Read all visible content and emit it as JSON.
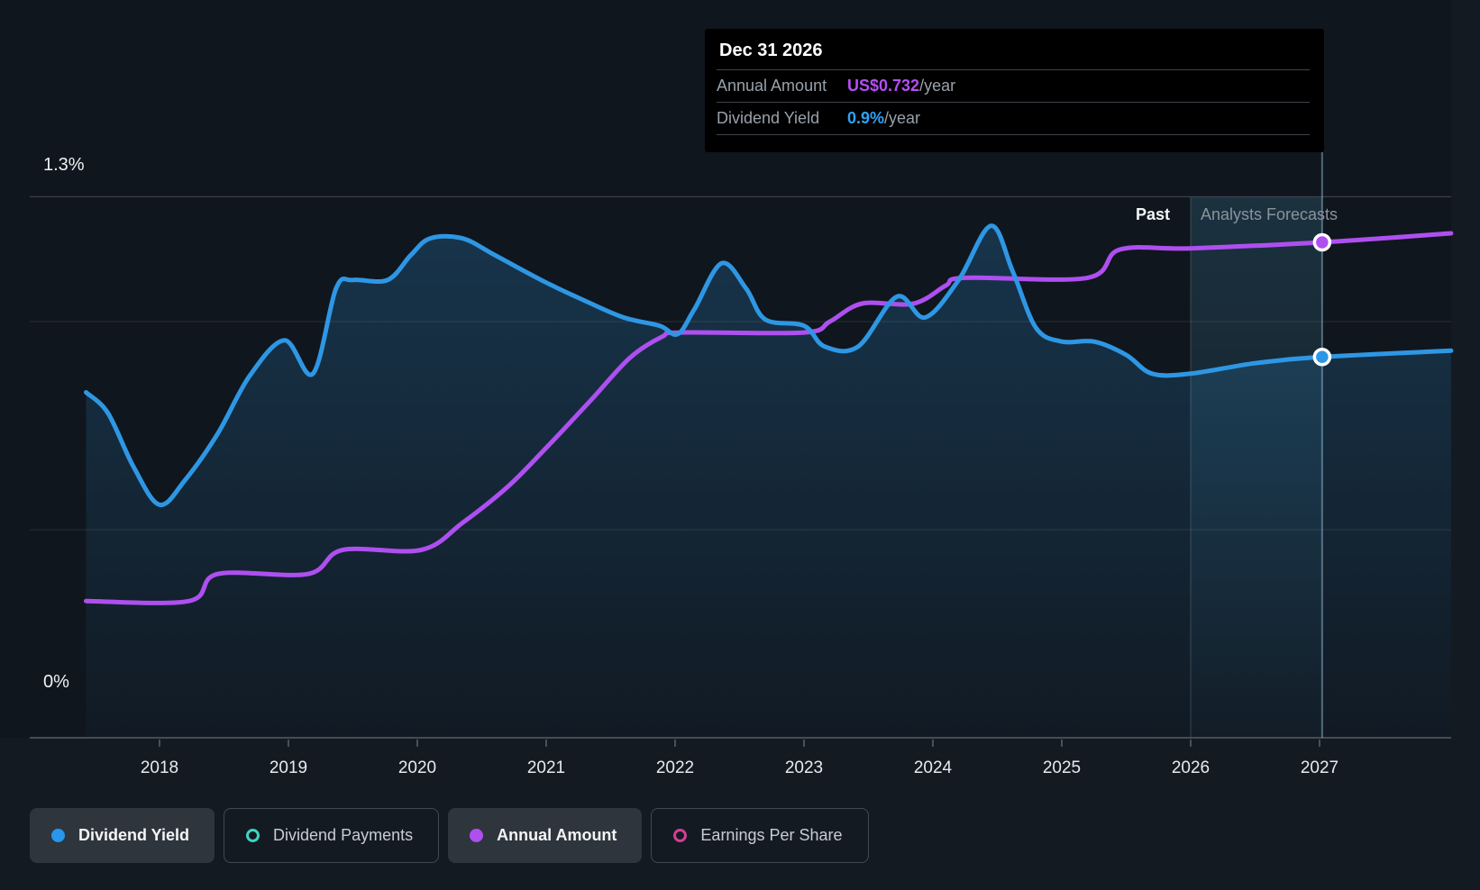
{
  "tooltip": {
    "title": "Dec 31 2026",
    "rows": [
      {
        "label": "Annual Amount",
        "value": "US$0.732",
        "suffix": "/year",
        "value_color": "#b44ff2"
      },
      {
        "label": "Dividend Yield",
        "value": "0.9%",
        "suffix": "/year",
        "value_color": "#2fa3f7"
      }
    ]
  },
  "annotations": {
    "past": "Past",
    "forecast": "Analysts Forecasts"
  },
  "axis": {
    "y_top_label": "1.3%",
    "y_bottom_label": "0%",
    "x_labels": [
      "2018",
      "2019",
      "2020",
      "2021",
      "2022",
      "2023",
      "2024",
      "2025",
      "2026",
      "2027"
    ]
  },
  "legend": {
    "items": [
      {
        "label": "Dividend Yield",
        "state": "active",
        "marker": "filled",
        "color": "#2796ec"
      },
      {
        "label": "Dividend Payments",
        "state": "inactive",
        "marker": "outline",
        "color": "#3fd4bf"
      },
      {
        "label": "Annual Amount",
        "state": "active",
        "marker": "filled",
        "color": "#ae4ff0"
      },
      {
        "label": "Earnings Per Share",
        "state": "inactive",
        "marker": "outline",
        "color": "#d33f96"
      }
    ]
  },
  "colors": {
    "page_bg": "#141a22",
    "plot_bg": "#10161d",
    "tooltip_bg": "#000000",
    "blue_line": "#2e97e4",
    "purple_line": "#ae4ff0",
    "gridline": "rgba(255,255,255,0.10)",
    "gridline_top": "rgba(255,255,255,0.22)",
    "axis_line": "#454c53",
    "band_teal": "72,160,199",
    "area_blue": "47,151,226",
    "hover_line": "rgba(164,205,228,0.45)",
    "divider_line": "rgba(154,195,217,0.25)"
  },
  "chart_data": {
    "type": "line",
    "title": "Dividend yield and annual amount history with analyst forecasts",
    "x_domain": [
      2017,
      2028.03
    ],
    "x_ticks": [
      2018,
      2019,
      2020,
      2021,
      2022,
      2023,
      2024,
      2025,
      2026,
      2027
    ],
    "y_axis_percent": {
      "ylim": [
        0,
        1.3
      ],
      "gridlines": [
        1.3,
        1.0,
        0.5,
        0
      ],
      "labeled": [
        "1.3%",
        "0%"
      ]
    },
    "grid": true,
    "legend_position": "bottom-left",
    "forecast_band": {
      "start": 2026.0,
      "end": 2027.02,
      "label_past": "Past",
      "label_forecast": "Analysts Forecasts"
    },
    "hovered_point": {
      "date": "Dec 31 2026",
      "annual_amount": "US$0.732/year",
      "dividend_yield": "0.9%/year"
    },
    "series": [
      {
        "name": "Dividend Yield",
        "unit": "%",
        "color": "#2e97e4",
        "area": true,
        "visible": true,
        "points": [
          [
            2017.43,
            0.83
          ],
          [
            2017.6,
            0.78
          ],
          [
            2017.8,
            0.65
          ],
          [
            2018.0,
            0.56
          ],
          [
            2018.2,
            0.62
          ],
          [
            2018.45,
            0.73
          ],
          [
            2018.7,
            0.87
          ],
          [
            2018.97,
            0.955
          ],
          [
            2019.19,
            0.875
          ],
          [
            2019.37,
            1.08
          ],
          [
            2019.5,
            1.1
          ],
          [
            2019.77,
            1.1
          ],
          [
            2019.95,
            1.16
          ],
          [
            2020.1,
            1.2
          ],
          [
            2020.35,
            1.2
          ],
          [
            2020.6,
            1.16
          ],
          [
            2020.96,
            1.1
          ],
          [
            2021.3,
            1.05
          ],
          [
            2021.6,
            1.01
          ],
          [
            2021.88,
            0.99
          ],
          [
            2022.02,
            0.97
          ],
          [
            2022.15,
            1.03
          ],
          [
            2022.36,
            1.14
          ],
          [
            2022.55,
            1.08
          ],
          [
            2022.7,
            1.005
          ],
          [
            2023.0,
            0.99
          ],
          [
            2023.16,
            0.94
          ],
          [
            2023.42,
            0.94
          ],
          [
            2023.72,
            1.06
          ],
          [
            2023.94,
            1.01
          ],
          [
            2024.2,
            1.1
          ],
          [
            2024.45,
            1.23
          ],
          [
            2024.62,
            1.12
          ],
          [
            2024.8,
            0.985
          ],
          [
            2025.0,
            0.952
          ],
          [
            2025.25,
            0.952
          ],
          [
            2025.5,
            0.92
          ],
          [
            2025.7,
            0.875
          ],
          [
            2026.0,
            0.875
          ],
          [
            2026.5,
            0.9
          ],
          [
            2027.02,
            0.915
          ],
          [
            2028.02,
            0.93
          ]
        ]
      },
      {
        "name": "Annual Amount",
        "unit": "US$/year",
        "color": "#ae4ff0",
        "area": false,
        "visible": true,
        "values_estimated_from_hover": true,
        "points": [
          [
            2017.43,
            0.135
          ],
          [
            2018.23,
            0.135
          ],
          [
            2018.45,
            0.18
          ],
          [
            2019.15,
            0.18
          ],
          [
            2019.42,
            0.22
          ],
          [
            2020.03,
            0.22
          ],
          [
            2020.35,
            0.265
          ],
          [
            2020.7,
            0.325
          ],
          [
            2021.0,
            0.39
          ],
          [
            2021.35,
            0.47
          ],
          [
            2021.65,
            0.54
          ],
          [
            2021.9,
            0.575
          ],
          [
            2022.05,
            0.582
          ],
          [
            2023.0,
            0.582
          ],
          [
            2023.2,
            0.6
          ],
          [
            2023.45,
            0.63
          ],
          [
            2023.85,
            0.63
          ],
          [
            2024.1,
            0.66
          ],
          [
            2024.25,
            0.673
          ],
          [
            2025.2,
            0.673
          ],
          [
            2025.45,
            0.72
          ],
          [
            2026.0,
            0.722
          ],
          [
            2027.02,
            0.732
          ],
          [
            2028.02,
            0.747
          ]
        ]
      },
      {
        "name": "Dividend Payments",
        "visible": false,
        "points": []
      },
      {
        "name": "Earnings Per Share",
        "visible": false,
        "points": []
      }
    ],
    "markers": [
      {
        "series": "Annual Amount",
        "x": 2027.02,
        "value": 0.732
      },
      {
        "series": "Dividend Yield",
        "x": 2027.02,
        "value": 0.915
      }
    ]
  }
}
